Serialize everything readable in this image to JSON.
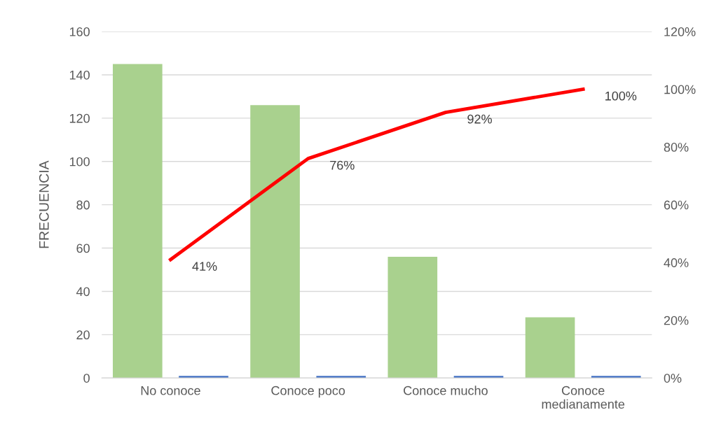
{
  "chart_data": {
    "type": "bar",
    "ylabel": "FRECUENCIA",
    "categories": [
      "No conoce",
      "Conoce poco",
      "Conoce mucho",
      "Conoce medianamente"
    ],
    "series": [
      {
        "color": "#a9d18e",
        "values": [
          145,
          126,
          56,
          28
        ]
      },
      {
        "color": "#4472c4",
        "values": [
          1,
          1,
          1,
          1
        ]
      },
      {
        "type": "line",
        "axis": "y2",
        "color": "#ff0000",
        "values": [
          41,
          76,
          92,
          100
        ],
        "value_labels": [
          "41%",
          "76%",
          "92%",
          "100%"
        ]
      }
    ],
    "ylim": [
      0,
      160
    ],
    "yticks": [
      0,
      20,
      40,
      60,
      80,
      100,
      120,
      140,
      160
    ],
    "y2lim": [
      0,
      120
    ],
    "y2ticks": [
      {
        "value": 0,
        "label": "0%"
      },
      {
        "value": 20,
        "label": "20%"
      },
      {
        "value": 40,
        "label": "40%"
      },
      {
        "value": 60,
        "label": "60%"
      },
      {
        "value": 80,
        "label": "80%"
      },
      {
        "value": 100,
        "label": "100%"
      },
      {
        "value": 120,
        "label": "120%"
      }
    ],
    "grid": "y",
    "marker": "none",
    "line_style": "solid"
  }
}
